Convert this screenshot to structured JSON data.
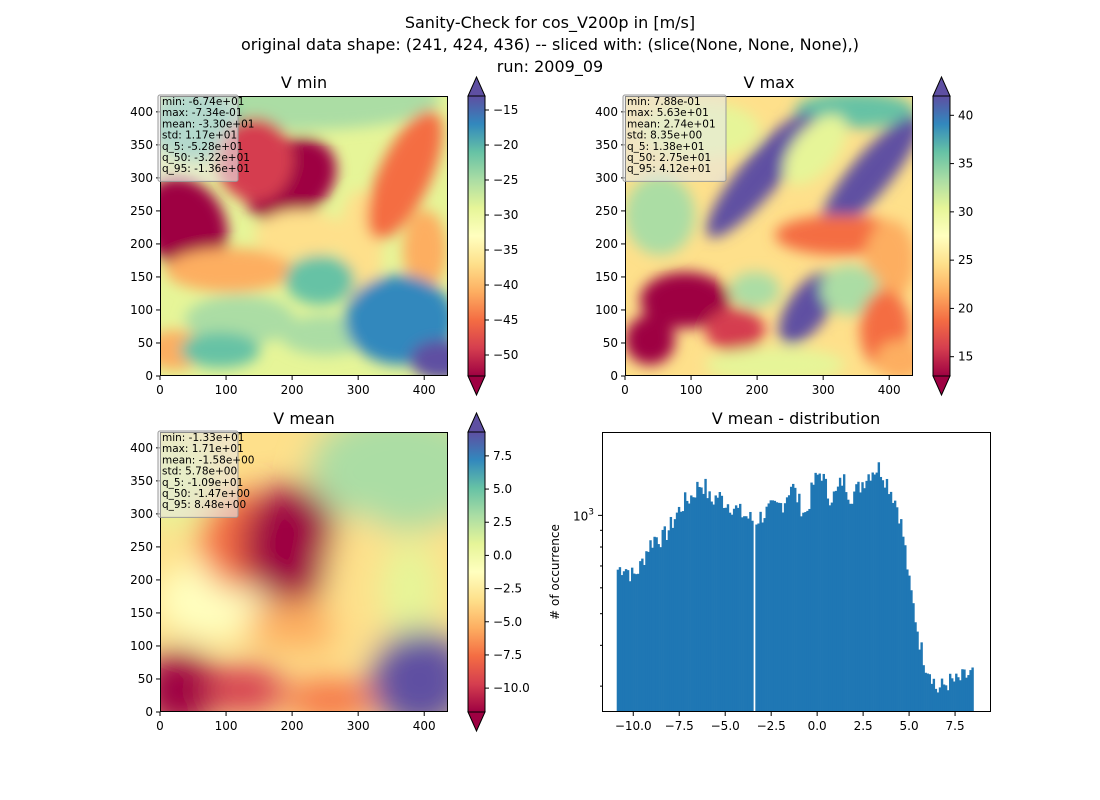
{
  "figure": {
    "title_lines": [
      "Sanity-Check for cos_V200p in [m/s]",
      "original data shape: (241, 424, 436) -- sliced with: (slice(None, None, None),)",
      "run: 2009_09"
    ]
  },
  "chart_data": [
    {
      "type": "heatmap",
      "title": "V min",
      "colormap": "Spectral",
      "xlim": [
        0,
        436
      ],
      "ylim": [
        0,
        424
      ],
      "xticks": [
        0,
        100,
        200,
        300,
        400
      ],
      "yticks": [
        0,
        50,
        100,
        150,
        200,
        250,
        300,
        350,
        400
      ],
      "colorbar": {
        "ticks": [
          -50,
          -45,
          -40,
          -35,
          -30,
          -25,
          -20,
          -15
        ],
        "range": [
          -53,
          -13
        ],
        "extend": "both"
      },
      "stats": [
        "min: -6.74e+01",
        "max: -7.34e-01",
        "mean: -3.30e+01",
        "std: 1.17e+01",
        "q_5: -5.28e+01",
        "q_50: -3.22e+01",
        "q_95: -1.36e+01"
      ]
    },
    {
      "type": "heatmap",
      "title": "V max",
      "colormap": "Spectral",
      "xlim": [
        0,
        436
      ],
      "ylim": [
        0,
        424
      ],
      "xticks": [
        0,
        100,
        200,
        300,
        400
      ],
      "yticks": [
        0,
        50,
        100,
        150,
        200,
        250,
        300,
        350,
        400
      ],
      "colorbar": {
        "ticks": [
          15,
          20,
          25,
          30,
          35,
          40
        ],
        "range": [
          13,
          42
        ],
        "extend": "both"
      },
      "stats": [
        "min: 7.88e-01",
        "max: 5.63e+01",
        "mean: 2.74e+01",
        "std: 8.35e+00",
        "q_5: 1.38e+01",
        "q_50: 2.75e+01",
        "q_95: 4.12e+01"
      ]
    },
    {
      "type": "heatmap",
      "title": "V mean",
      "colormap": "Spectral",
      "xlim": [
        0,
        436
      ],
      "ylim": [
        0,
        424
      ],
      "xticks": [
        0,
        100,
        200,
        300,
        400
      ],
      "yticks": [
        0,
        50,
        100,
        150,
        200,
        250,
        300,
        350,
        400
      ],
      "colorbar": {
        "ticks": [
          -10.0,
          -7.5,
          -5.0,
          -2.5,
          0.0,
          2.5,
          5.0,
          7.5
        ],
        "tick_labels": [
          "−10.0",
          "−7.5",
          "−5.0",
          "−2.5",
          "0.0",
          "2.5",
          "5.0",
          "7.5"
        ],
        "range": [
          -11.8,
          9.3
        ],
        "extend": "both"
      },
      "stats": [
        "min: -1.33e+01",
        "max: 1.71e+01",
        "mean: -1.58e+00",
        "std: 5.78e+00",
        "q_5: -1.09e+01",
        "q_50: -1.47e+00",
        "q_95: 8.48e+00"
      ]
    },
    {
      "type": "bar",
      "title": "V mean - distribution",
      "ylabel": "# of occurrence",
      "yscale": "log",
      "color": "#1f77b4",
      "xlim": [
        -11.7,
        9.4
      ],
      "ylim": [
        250,
        1800
      ],
      "xticks": [
        -10.0,
        -7.5,
        -5.0,
        -2.5,
        0.0,
        2.5,
        5.0,
        7.5
      ],
      "xtick_labels": [
        "−10.0",
        "−7.5",
        "−5.0",
        "−2.5",
        "0.0",
        "2.5",
        "5.0",
        "7.5"
      ],
      "ytick_label": "10",
      "ytick_label_exp": "3",
      "x_profile": [
        -10.9,
        -10.5,
        -10.0,
        -9.6,
        -9.2,
        -8.8,
        -8.4,
        -8.0,
        -7.6,
        -7.2,
        -6.8,
        -6.4,
        -6.1,
        -5.8,
        -5.4,
        -5.0,
        -4.6,
        -4.2,
        -3.8,
        -3.4,
        -3.0,
        -2.6,
        -2.2,
        -1.8,
        -1.4,
        -1.0,
        -0.6,
        -0.2,
        0.2,
        0.6,
        1.0,
        1.4,
        1.8,
        2.2,
        2.6,
        3.0,
        3.4,
        3.7,
        4.0,
        4.4,
        4.7,
        5.0,
        5.3,
        5.6,
        5.9,
        6.2,
        6.5,
        6.8,
        7.2,
        7.6,
        8.0,
        8.5
      ],
      "y_profile": [
        680,
        700,
        650,
        700,
        800,
        860,
        850,
        920,
        1020,
        1100,
        1150,
        1250,
        1230,
        1100,
        1150,
        1100,
        1070,
        1020,
        990,
        960,
        1000,
        1040,
        1060,
        1100,
        1250,
        1100,
        1000,
        1250,
        1370,
        1150,
        1150,
        1300,
        1150,
        1200,
        1300,
        1380,
        1400,
        1300,
        1200,
        1050,
        850,
        620,
        500,
        400,
        350,
        330,
        290,
        300,
        310,
        310,
        320,
        330
      ],
      "gap_at": -3.45
    }
  ]
}
